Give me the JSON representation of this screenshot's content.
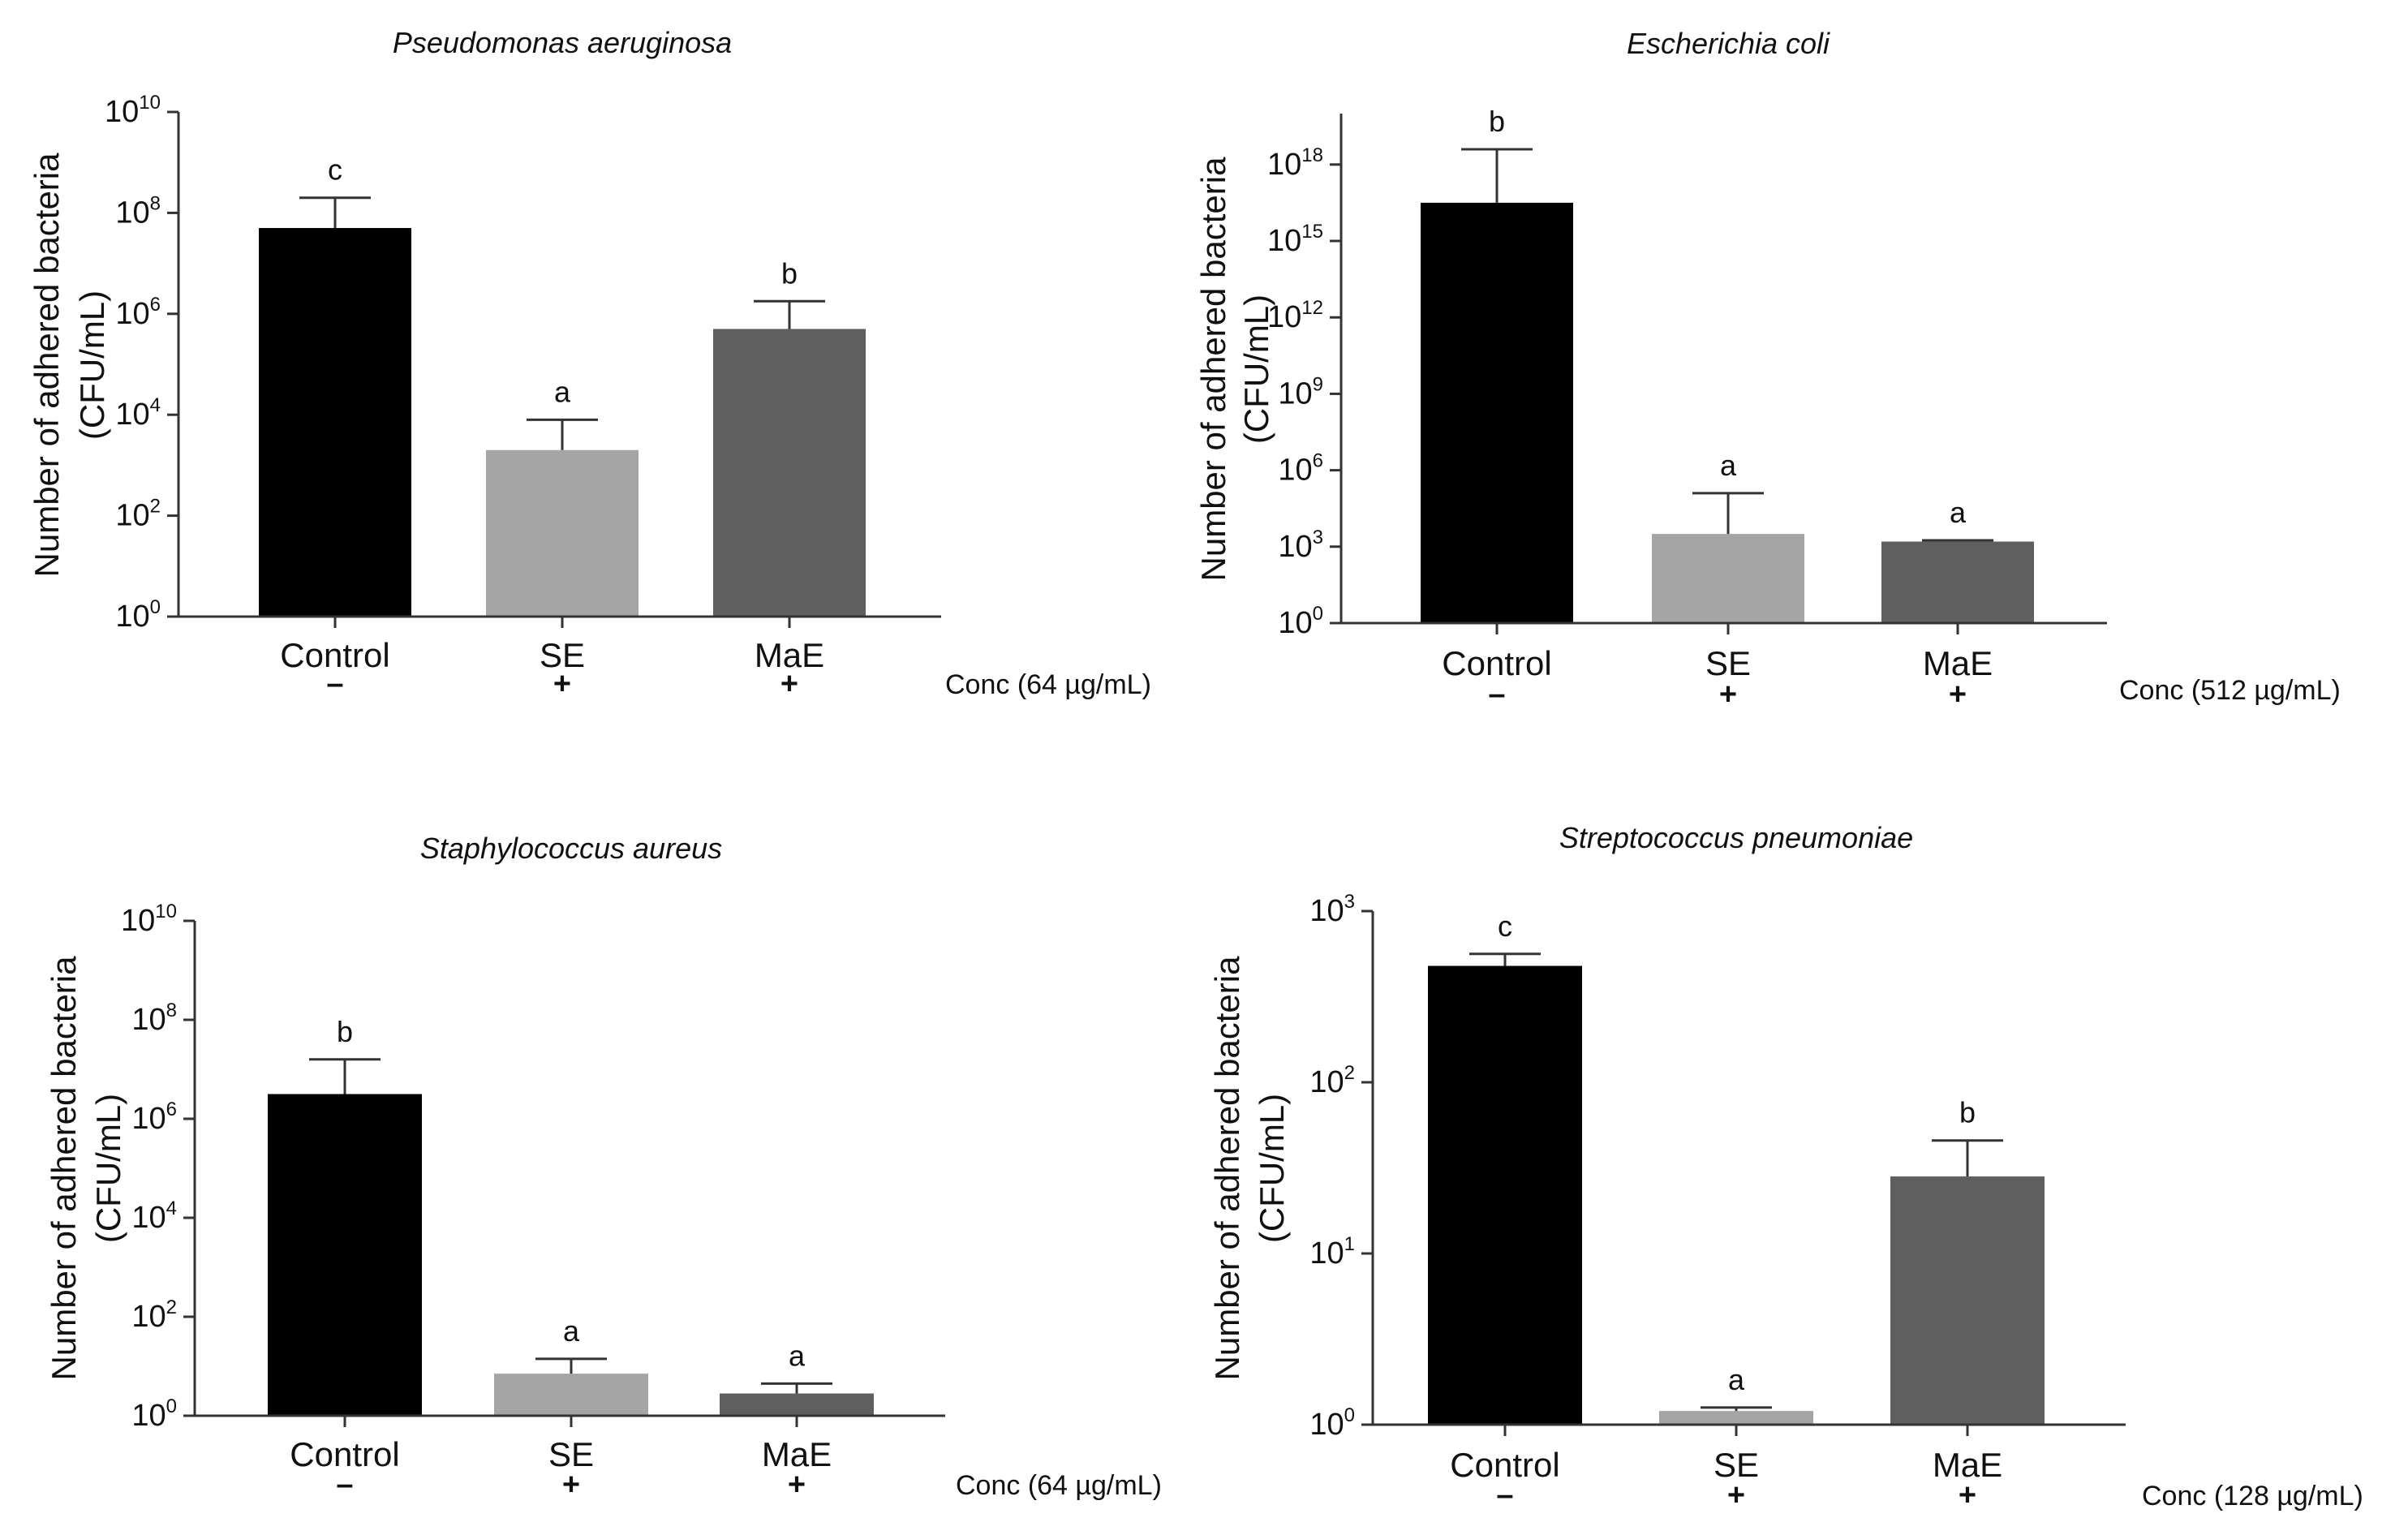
{
  "figure_type": "multi-panel bar chart (log scale)",
  "chart_data": [
    {
      "type": "bar",
      "title": "Pseudomonas  aeruginosa",
      "ylabel_line1": "Number of adhered bacteria",
      "ylabel_line2": "(CFU/mL)",
      "yscale": "log",
      "ylim_exp": [
        0,
        10
      ],
      "ytick_exps": [
        0,
        2,
        4,
        6,
        8,
        10
      ],
      "categories": [
        "Control",
        "SE",
        "MaE"
      ],
      "signs": [
        "–",
        "+",
        "+"
      ],
      "conc_label": "Conc (64 µg/mL)",
      "values_exp": [
        7.7,
        3.3,
        5.7
      ],
      "error_top_exp": [
        8.3,
        3.9,
        6.25
      ],
      "significance": [
        "c",
        "a",
        "b"
      ],
      "colors": [
        "#000000",
        "#a5a5a5",
        "#5f5f5f"
      ]
    },
    {
      "type": "bar",
      "title": "Escherichia coli",
      "ylabel_line1": "Number of adhered bacteria",
      "ylabel_line2": "(CFU/mL)",
      "yscale": "log",
      "ylim_exp": [
        0,
        20
      ],
      "ytick_exps": [
        0,
        3,
        6,
        9,
        12,
        15,
        18
      ],
      "categories": [
        "Control",
        "SE",
        "MaE"
      ],
      "signs": [
        "–",
        "+",
        "+"
      ],
      "conc_label": "Conc (512 µg/mL)",
      "values_exp": [
        16.5,
        3.5,
        3.2
      ],
      "error_top_exp": [
        18.6,
        5.1,
        3.25
      ],
      "significance": [
        "b",
        "a",
        "a"
      ],
      "colors": [
        "#000000",
        "#a5a5a5",
        "#5f5f5f"
      ]
    },
    {
      "type": "bar",
      "title": "Staphylococcus aureus",
      "ylabel_line1": "Number of adhered bacteria",
      "ylabel_line2": "(CFU/mL)",
      "yscale": "log",
      "ylim_exp": [
        0,
        10
      ],
      "ytick_exps": [
        0,
        2,
        4,
        6,
        8,
        10
      ],
      "categories": [
        "Control",
        "SE",
        "MaE"
      ],
      "signs": [
        "–",
        "+",
        "+"
      ],
      "conc_label": "Conc (64 µg/mL)",
      "values_exp": [
        6.5,
        0.85,
        0.45
      ],
      "error_top_exp": [
        7.2,
        1.15,
        0.65
      ],
      "significance": [
        "b",
        "a",
        "a"
      ],
      "colors": [
        "#000000",
        "#a5a5a5",
        "#5f5f5f"
      ]
    },
    {
      "type": "bar",
      "title": "Streptococcus pneumoniae",
      "ylabel_line1": "Number of adhered bacteria",
      "ylabel_line2": "(CFU/mL)",
      "yscale": "log",
      "ylim_exp": [
        0,
        3
      ],
      "ytick_exps": [
        0,
        1,
        2,
        3
      ],
      "categories": [
        "Control",
        "SE",
        "MaE"
      ],
      "signs": [
        "–",
        "+",
        "+"
      ],
      "conc_label": "Conc (128 µg/mL)",
      "values_exp": [
        2.68,
        0.08,
        1.45
      ],
      "error_top_exp": [
        2.75,
        0.1,
        1.66
      ],
      "significance": [
        "c",
        "a",
        "b"
      ],
      "colors": [
        "#000000",
        "#a5a5a5",
        "#5f5f5f"
      ]
    }
  ]
}
